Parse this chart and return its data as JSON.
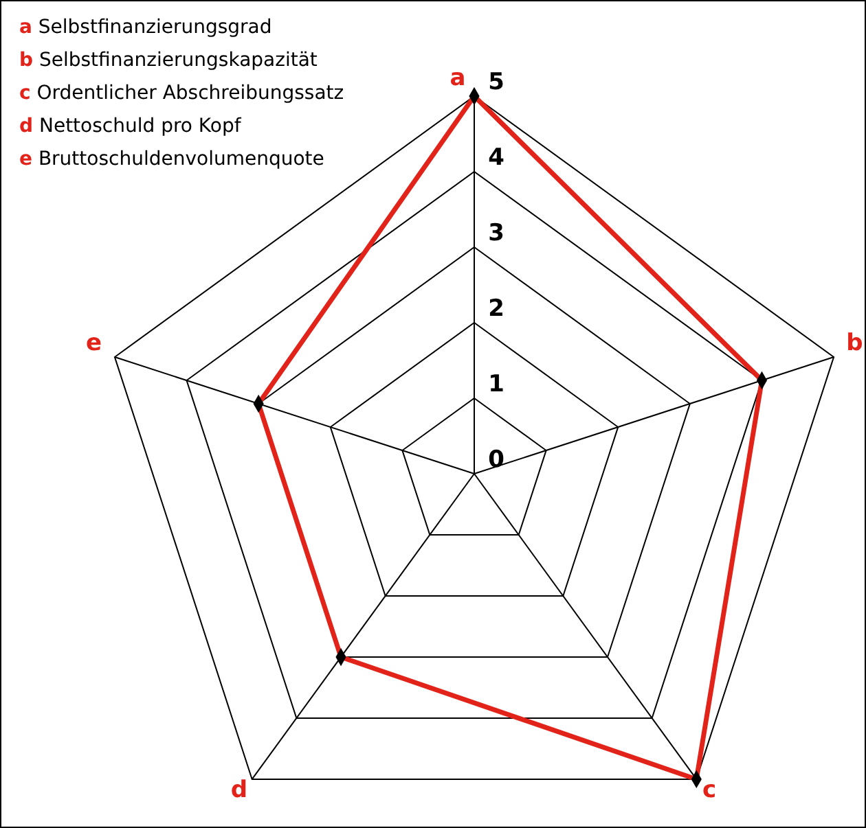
{
  "chart_data": {
    "type": "radar",
    "categories": [
      "a",
      "b",
      "c",
      "d",
      "e"
    ],
    "series": [
      {
        "color": "#e2231a",
        "values": [
          5,
          4,
          5,
          3,
          3
        ]
      }
    ],
    "ylim": [
      0,
      5
    ],
    "yticks": [
      0,
      1,
      2,
      3,
      4,
      5
    ],
    "grid": true,
    "marker": "diamond",
    "annotations": [
      "a Selbstfinanzierungsgrad",
      "b Selbstfinanzierungskapazität",
      "c Ordentlicher Abschreibungssatz",
      "d Nettoschuld pro Kopf",
      "e Bruttoschuldenvolumenquote"
    ]
  }
}
